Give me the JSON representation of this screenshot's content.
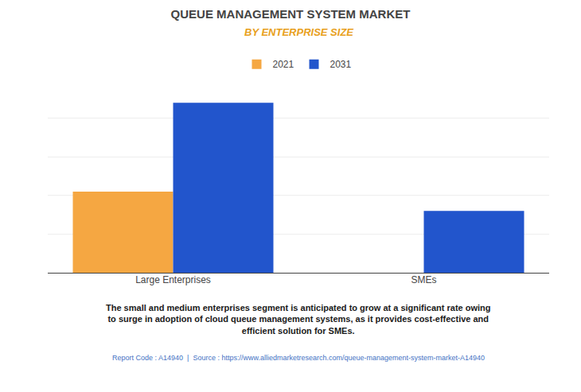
{
  "chart_data": {
    "type": "bar",
    "title": "QUEUE MANAGEMENT SYSTEM MARKET",
    "subtitle": "BY ENTERPRISE SIZE",
    "categories": [
      "Large Enterprises",
      "SMEs"
    ],
    "series": [
      {
        "name": "2021",
        "color": "#F5A742",
        "values": [
          0.42,
          0
        ]
      },
      {
        "name": "2031",
        "color": "#2255CC",
        "values": [
          0.88,
          0.32
        ]
      }
    ],
    "ylim": [
      0,
      1.0
    ],
    "yticks": [
      0,
      0.2,
      0.4,
      0.6,
      0.8,
      1.0
    ],
    "grid": true,
    "tick_labels": "x",
    "legend": "top",
    "annotations": [
      "The small and medium enterprises segment is anticipated to grow at a significant rate owing\nto surge in adoption of cloud queue management systems, as it provides cost-effective and\nefficient solution for SMEs.",
      "Report Code : A14940  |  Source : https://www.alliedmarketresearch.com/queue-management-system-market-A14940"
    ]
  }
}
